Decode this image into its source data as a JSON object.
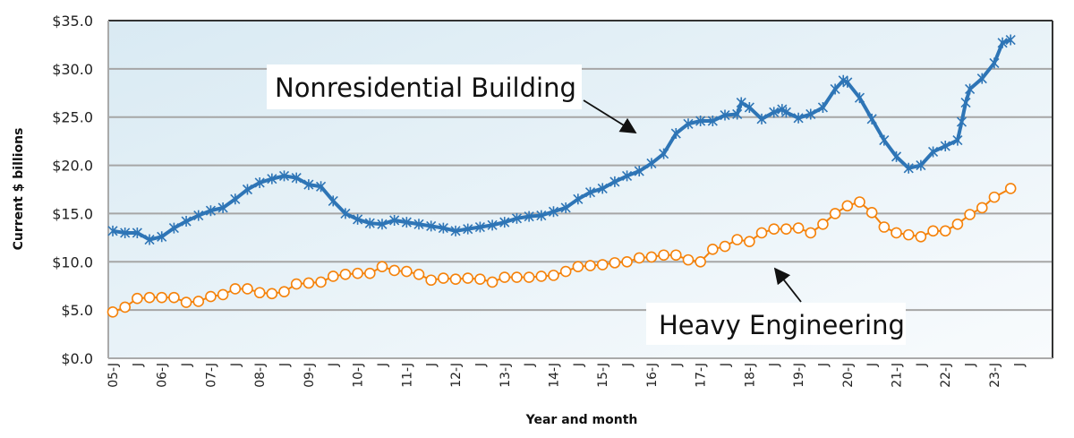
{
  "chart_data": {
    "type": "line",
    "title": "",
    "xlabel": "Year and month",
    "ylabel": "Current $ billions",
    "ylim": [
      0,
      35
    ],
    "yticks": [
      "$0.0",
      "$5.0",
      "$10.0",
      "$15.0",
      "$20.0",
      "$25.0",
      "$30.0",
      "$35.0"
    ],
    "xlim": [
      "2005-01",
      "2023-12"
    ],
    "xticks": [
      "05-J",
      "J",
      "06-J",
      "J",
      "07-J",
      "J",
      "08-J",
      "J",
      "09-J",
      "J",
      "10-J",
      "J",
      "11-J",
      "J",
      "12-J",
      "J",
      "13-J",
      "J",
      "14-J",
      "J",
      "15-J",
      "J",
      "16-J",
      "J",
      "17-J",
      "J",
      "18-J",
      "J",
      "19-J",
      "J",
      "20-J",
      "J",
      "21-J",
      "J",
      "22-J",
      "J",
      "23-J",
      "J"
    ],
    "grid": true,
    "legend": "none",
    "annotations": [
      {
        "text": "Nonresidential Building",
        "series": 0
      },
      {
        "text": "Heavy Engineering",
        "series": 1
      }
    ],
    "series": [
      {
        "name": "Nonresidential Building",
        "color": "#2e75b6",
        "marker": "star",
        "points": [
          [
            "2005-01",
            13.2
          ],
          [
            "2005-04",
            13.0
          ],
          [
            "2005-07",
            13.0
          ],
          [
            "2005-10",
            12.3
          ],
          [
            "2006-01",
            12.6
          ],
          [
            "2006-04",
            13.5
          ],
          [
            "2006-07",
            14.2
          ],
          [
            "2006-10",
            14.8
          ],
          [
            "2007-01",
            15.3
          ],
          [
            "2007-04",
            15.6
          ],
          [
            "2007-07",
            16.5
          ],
          [
            "2007-10",
            17.5
          ],
          [
            "2008-01",
            18.2
          ],
          [
            "2008-04",
            18.6
          ],
          [
            "2008-07",
            18.9
          ],
          [
            "2008-10",
            18.7
          ],
          [
            "2009-01",
            18.0
          ],
          [
            "2009-04",
            17.8
          ],
          [
            "2009-07",
            16.3
          ],
          [
            "2009-10",
            15.0
          ],
          [
            "2010-01",
            14.4
          ],
          [
            "2010-04",
            14.0
          ],
          [
            "2010-07",
            13.9
          ],
          [
            "2010-10",
            14.3
          ],
          [
            "2011-01",
            14.1
          ],
          [
            "2011-04",
            13.9
          ],
          [
            "2011-07",
            13.7
          ],
          [
            "2011-10",
            13.5
          ],
          [
            "2012-01",
            13.2
          ],
          [
            "2012-04",
            13.4
          ],
          [
            "2012-07",
            13.6
          ],
          [
            "2012-10",
            13.8
          ],
          [
            "2013-01",
            14.1
          ],
          [
            "2013-04",
            14.5
          ],
          [
            "2013-07",
            14.7
          ],
          [
            "2013-10",
            14.8
          ],
          [
            "2014-01",
            15.2
          ],
          [
            "2014-04",
            15.6
          ],
          [
            "2014-07",
            16.5
          ],
          [
            "2014-10",
            17.2
          ],
          [
            "2015-01",
            17.6
          ],
          [
            "2015-04",
            18.3
          ],
          [
            "2015-07",
            18.9
          ],
          [
            "2015-10",
            19.4
          ],
          [
            "2016-01",
            20.2
          ],
          [
            "2016-04",
            21.2
          ],
          [
            "2016-07",
            23.3
          ],
          [
            "2016-10",
            24.3
          ],
          [
            "2017-01",
            24.6
          ],
          [
            "2017-04",
            24.6
          ],
          [
            "2017-07",
            25.2
          ],
          [
            "2017-10",
            25.3
          ],
          [
            "2017-11",
            26.5
          ],
          [
            "2018-01",
            26.0
          ],
          [
            "2018-04",
            24.8
          ],
          [
            "2018-07",
            25.5
          ],
          [
            "2018-09",
            25.8
          ],
          [
            "2018-10",
            25.5
          ],
          [
            "2019-01",
            24.9
          ],
          [
            "2019-04",
            25.3
          ],
          [
            "2019-07",
            26.0
          ],
          [
            "2019-10",
            27.9
          ],
          [
            "2019-12",
            28.8
          ],
          [
            "2020-01",
            28.6
          ],
          [
            "2020-04",
            27.0
          ],
          [
            "2020-07",
            24.8
          ],
          [
            "2020-10",
            22.6
          ],
          [
            "2021-01",
            20.9
          ],
          [
            "2021-04",
            19.7
          ],
          [
            "2021-07",
            20.0
          ],
          [
            "2021-10",
            21.4
          ],
          [
            "2022-01",
            22.0
          ],
          [
            "2022-04",
            22.6
          ],
          [
            "2022-05",
            24.5
          ],
          [
            "2022-06",
            26.5
          ],
          [
            "2022-07",
            27.9
          ],
          [
            "2022-10",
            29.0
          ],
          [
            "2023-01",
            30.6
          ],
          [
            "2023-03",
            32.7
          ],
          [
            "2023-05",
            33.0
          ]
        ]
      },
      {
        "name": "Heavy Engineering",
        "color": "#f5820a",
        "marker": "circle",
        "points": [
          [
            "2005-01",
            4.8
          ],
          [
            "2005-04",
            5.3
          ],
          [
            "2005-07",
            6.2
          ],
          [
            "2005-10",
            6.3
          ],
          [
            "2006-01",
            6.3
          ],
          [
            "2006-04",
            6.3
          ],
          [
            "2006-07",
            5.8
          ],
          [
            "2006-10",
            5.9
          ],
          [
            "2007-01",
            6.4
          ],
          [
            "2007-04",
            6.6
          ],
          [
            "2007-07",
            7.2
          ],
          [
            "2007-10",
            7.2
          ],
          [
            "2008-01",
            6.8
          ],
          [
            "2008-04",
            6.7
          ],
          [
            "2008-07",
            6.9
          ],
          [
            "2008-10",
            7.7
          ],
          [
            "2009-01",
            7.8
          ],
          [
            "2009-04",
            7.9
          ],
          [
            "2009-07",
            8.5
          ],
          [
            "2009-10",
            8.7
          ],
          [
            "2010-01",
            8.8
          ],
          [
            "2010-04",
            8.8
          ],
          [
            "2010-07",
            9.5
          ],
          [
            "2010-10",
            9.1
          ],
          [
            "2011-01",
            9.0
          ],
          [
            "2011-04",
            8.7
          ],
          [
            "2011-07",
            8.1
          ],
          [
            "2011-10",
            8.3
          ],
          [
            "2012-01",
            8.2
          ],
          [
            "2012-04",
            8.3
          ],
          [
            "2012-07",
            8.2
          ],
          [
            "2012-10",
            7.9
          ],
          [
            "2013-01",
            8.4
          ],
          [
            "2013-04",
            8.4
          ],
          [
            "2013-07",
            8.4
          ],
          [
            "2013-10",
            8.5
          ],
          [
            "2014-01",
            8.6
          ],
          [
            "2014-04",
            9.0
          ],
          [
            "2014-07",
            9.5
          ],
          [
            "2014-10",
            9.6
          ],
          [
            "2015-01",
            9.7
          ],
          [
            "2015-04",
            9.9
          ],
          [
            "2015-07",
            10.0
          ],
          [
            "2015-10",
            10.4
          ],
          [
            "2016-01",
            10.5
          ],
          [
            "2016-04",
            10.7
          ],
          [
            "2016-07",
            10.7
          ],
          [
            "2016-10",
            10.2
          ],
          [
            "2017-01",
            10.0
          ],
          [
            "2017-04",
            11.3
          ],
          [
            "2017-07",
            11.6
          ],
          [
            "2017-10",
            12.3
          ],
          [
            "2018-01",
            12.1
          ],
          [
            "2018-04",
            13.0
          ],
          [
            "2018-07",
            13.4
          ],
          [
            "2018-10",
            13.4
          ],
          [
            "2019-01",
            13.5
          ],
          [
            "2019-04",
            13.0
          ],
          [
            "2019-07",
            13.9
          ],
          [
            "2019-10",
            15.0
          ],
          [
            "2020-01",
            15.8
          ],
          [
            "2020-04",
            16.2
          ],
          [
            "2020-07",
            15.1
          ],
          [
            "2020-10",
            13.6
          ],
          [
            "2021-01",
            13.0
          ],
          [
            "2021-04",
            12.8
          ],
          [
            "2021-07",
            12.6
          ],
          [
            "2021-10",
            13.2
          ],
          [
            "2022-01",
            13.2
          ],
          [
            "2022-04",
            13.9
          ],
          [
            "2022-07",
            14.9
          ],
          [
            "2022-10",
            15.6
          ],
          [
            "2023-01",
            16.7
          ],
          [
            "2023-05",
            17.6
          ]
        ]
      }
    ]
  }
}
